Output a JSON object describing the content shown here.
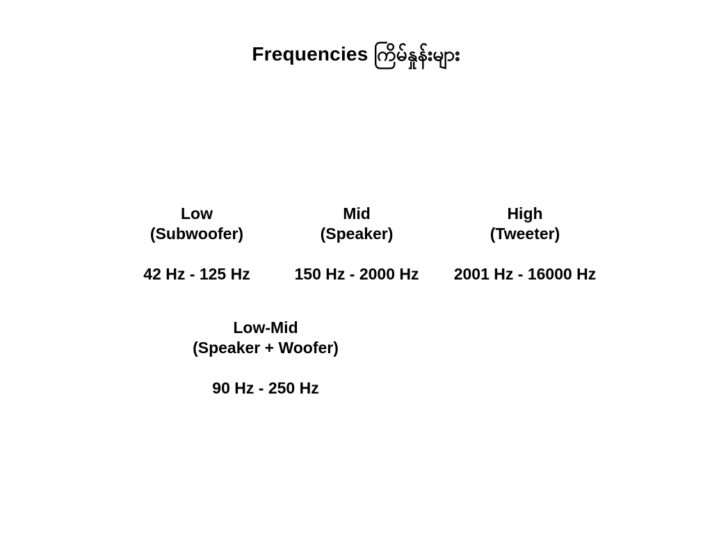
{
  "title": "Frequencies ကြိမ်နှုန်းများ",
  "bands": [
    {
      "name": "Low",
      "device": "(Subwoofer)",
      "range": "42 Hz - 125 Hz"
    },
    {
      "name": "Mid",
      "device": "(Speaker)",
      "range": "150 Hz - 2000 Hz"
    },
    {
      "name": "High",
      "device": "(Tweeter)",
      "range": "2001 Hz - 16000 Hz"
    },
    {
      "name": "Low-Mid",
      "device": "(Speaker + Woofer)",
      "range": "90 Hz - 250 Hz"
    }
  ],
  "colors": {
    "background": "#ffffff",
    "text": "#000000"
  }
}
